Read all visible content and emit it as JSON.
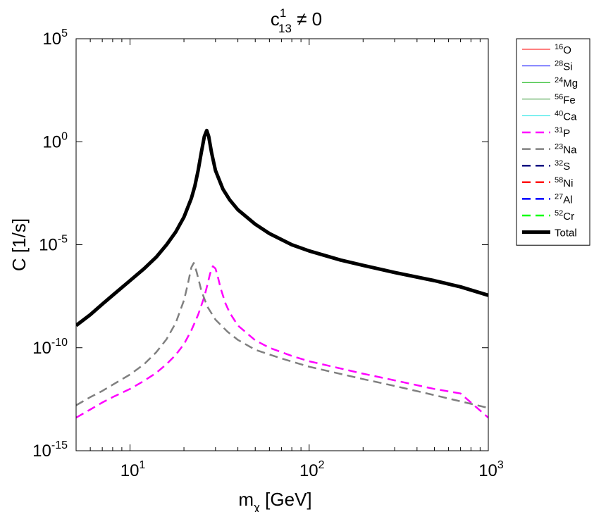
{
  "chart_data": {
    "type": "line",
    "title": {
      "base": "c",
      "sup": "1",
      "sub": "13",
      "suffix": " ≠ 0"
    },
    "xlabel": {
      "base": "m",
      "sub": "χ",
      "suffix": " [GeV]"
    },
    "ylabel": "C [1/s]",
    "xscale": "log",
    "yscale": "log",
    "xlim": [
      5,
      1000
    ],
    "ylim": [
      1e-15,
      100000.0
    ],
    "grid": false,
    "legend_position": "outside-top-right",
    "x_ticks": [
      {
        "value": 10,
        "base": "10",
        "exp": "1"
      },
      {
        "value": 100,
        "base": "10",
        "exp": "2"
      },
      {
        "value": 1000,
        "base": "10",
        "exp": "3"
      }
    ],
    "y_ticks": [
      {
        "value": 100000.0,
        "base": "10",
        "exp": "5"
      },
      {
        "value": 1,
        "base": "10",
        "exp": "0"
      },
      {
        "value": 1e-05,
        "base": "10",
        "exp": "-5"
      },
      {
        "value": 1e-10,
        "base": "10",
        "exp": "-10"
      },
      {
        "value": 1e-15,
        "base": "10",
        "exp": "-15"
      }
    ],
    "series": [
      {
        "name": "16O",
        "mass": "16",
        "element": "O",
        "color": "#ff0000",
        "style": "solid",
        "width": 1,
        "points": []
      },
      {
        "name": "28Si",
        "mass": "28",
        "element": "Si",
        "color": "#0000ff",
        "style": "solid",
        "width": 1,
        "points": []
      },
      {
        "name": "24Mg",
        "mass": "24",
        "element": "Mg",
        "color": "#00b000",
        "style": "solid",
        "width": 1,
        "points": []
      },
      {
        "name": "56Fe",
        "mass": "56",
        "element": "Fe",
        "color": "#3c9a3c",
        "style": "solid",
        "width": 1,
        "points": []
      },
      {
        "name": "40Ca",
        "mass": "40",
        "element": "Ca",
        "color": "#00e0e0",
        "style": "solid",
        "width": 1,
        "points": []
      },
      {
        "name": "31P",
        "mass": "31",
        "element": "P",
        "color": "#ff00ff",
        "style": "dashed",
        "width": 2.5,
        "points": [
          [
            5,
            4e-14
          ],
          [
            6,
            1e-13
          ],
          [
            7,
            2.2e-13
          ],
          [
            8,
            4e-13
          ],
          [
            10,
            1e-12
          ],
          [
            12,
            2.5e-12
          ],
          [
            14,
            6e-12
          ],
          [
            16,
            1.6e-11
          ],
          [
            18,
            4.5e-11
          ],
          [
            20,
            1.5e-10
          ],
          [
            22,
            7e-10
          ],
          [
            24,
            4e-09
          ],
          [
            26,
            3e-08
          ],
          [
            27,
            1.1e-07
          ],
          [
            28,
            4e-07
          ],
          [
            29,
            9e-07
          ],
          [
            30,
            7e-07
          ],
          [
            31,
            2.5e-07
          ],
          [
            32,
            8e-08
          ],
          [
            34,
            1.5e-08
          ],
          [
            36,
            5e-09
          ],
          [
            40,
            1.2e-09
          ],
          [
            50,
            2.3e-10
          ],
          [
            60,
            1e-10
          ],
          [
            80,
            4e-11
          ],
          [
            100,
            2.2e-11
          ],
          [
            200,
            5.5e-12
          ],
          [
            300,
            2.6e-12
          ],
          [
            500,
            1e-12
          ],
          [
            700,
            6e-13
          ],
          [
            1000,
            4e-14
          ]
        ]
      },
      {
        "name": "23Na",
        "mass": "23",
        "element": "Na",
        "color": "#808080",
        "style": "dashed",
        "width": 2.5,
        "points": [
          [
            5,
            1.6e-13
          ],
          [
            6,
            4e-13
          ],
          [
            7,
            8e-13
          ],
          [
            8,
            1.6e-12
          ],
          [
            10,
            5e-12
          ],
          [
            12,
            1.6e-11
          ],
          [
            14,
            6e-11
          ],
          [
            16,
            2.6e-10
          ],
          [
            18,
            1.6e-09
          ],
          [
            20,
            2e-08
          ],
          [
            21,
            1.2e-07
          ],
          [
            22,
            8e-07
          ],
          [
            22.7,
            1.3e-06
          ],
          [
            23.5,
            5e-07
          ],
          [
            25,
            6e-08
          ],
          [
            27,
            1e-08
          ],
          [
            30,
            2.3e-09
          ],
          [
            35,
            6e-10
          ],
          [
            40,
            2.4e-10
          ],
          [
            50,
            8e-11
          ],
          [
            70,
            3e-11
          ],
          [
            100,
            1.2e-11
          ],
          [
            200,
            3e-12
          ],
          [
            300,
            1.4e-12
          ],
          [
            500,
            5e-13
          ],
          [
            700,
            2.5e-13
          ],
          [
            1000,
            1.2e-13
          ]
        ]
      },
      {
        "name": "32S",
        "mass": "32",
        "element": "S",
        "color": "#000080",
        "style": "dashed",
        "width": 2.5,
        "points": []
      },
      {
        "name": "58Ni",
        "mass": "58",
        "element": "Ni",
        "color": "#ff0000",
        "style": "dashed",
        "width": 2.5,
        "points": []
      },
      {
        "name": "27Al",
        "mass": "27",
        "element": "Al",
        "color": "#0000ff",
        "style": "dashed",
        "width": 2.5,
        "points": []
      },
      {
        "name": "52Cr",
        "mass": "52",
        "element": "Cr",
        "color": "#00ff00",
        "style": "dashed",
        "width": 2.5,
        "points": []
      },
      {
        "name": "Total",
        "mass": "",
        "element": "Total",
        "color": "#000000",
        "style": "solid",
        "width": 5,
        "points": [
          [
            5,
            1.2e-09
          ],
          [
            6,
            4e-09
          ],
          [
            7,
            1.3e-08
          ],
          [
            8,
            3.5e-08
          ],
          [
            10,
            1.8e-07
          ],
          [
            12,
            7e-07
          ],
          [
            14,
            2.5e-06
          ],
          [
            16,
            1e-05
          ],
          [
            18,
            4.2e-05
          ],
          [
            20,
            0.00022
          ],
          [
            22,
            0.0018
          ],
          [
            23,
            0.007
          ],
          [
            24,
            0.04
          ],
          [
            25,
            0.3
          ],
          [
            26,
            1.8
          ],
          [
            26.8,
            3.5
          ],
          [
            27.5,
            1.8
          ],
          [
            28.5,
            0.3
          ],
          [
            30,
            0.04
          ],
          [
            33,
            0.005
          ],
          [
            36,
            0.0015
          ],
          [
            40,
            0.0005
          ],
          [
            50,
            0.0001
          ],
          [
            60,
            3.5e-05
          ],
          [
            80,
            1e-05
          ],
          [
            100,
            5e-06
          ],
          [
            150,
            1.8e-06
          ],
          [
            200,
            1e-06
          ],
          [
            300,
            4.5e-07
          ],
          [
            500,
            1.8e-07
          ],
          [
            700,
            9e-08
          ],
          [
            1000,
            3.5e-08
          ]
        ]
      }
    ]
  }
}
